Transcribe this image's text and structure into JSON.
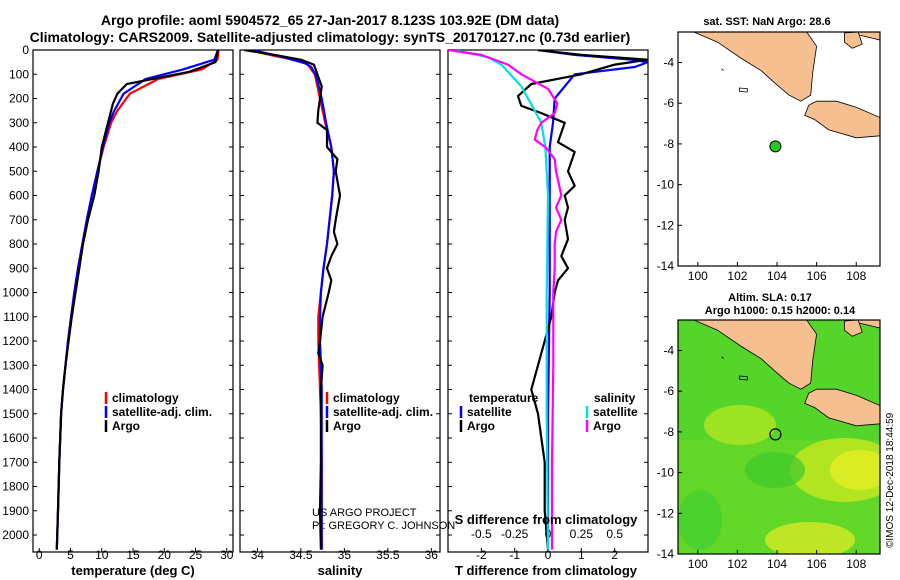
{
  "header": {
    "title_line1": "Argo profile: aoml 5904572_65 27-Jan-2017 8.123S 103.92E (DM data)",
    "title_line2": "Climatology: CARS2009. Satellite-adjusted climatology: synTS_20170127.nc (0.73d earlier)"
  },
  "colors": {
    "climatology": "#ff0000",
    "satellite": "#0000ff",
    "argo": "#000000",
    "salinity_satellite": "#00e0e0",
    "salinity_argo": "#ff00ff",
    "land": "#f5bf8f",
    "float_marker": "#22cc22"
  },
  "credits": {
    "project": "US ARGO PROJECT",
    "pi": "PI: GREGORY C. JOHNSON",
    "imos": "©IMOS 12-Dec-2018 18:44:59"
  },
  "maps": {
    "sst_title": "sat. SST: NaN Argo: 28.6",
    "sla_title_line1": "Altim. SLA: 0.17",
    "sla_title_line2": "Argo h1000: 0.15 h2000: 0.14",
    "lon_ticks": [
      "100",
      "102",
      "104",
      "106",
      "108"
    ],
    "lat_ticks": [
      "-4",
      "-6",
      "-8",
      "-10",
      "-12",
      "-14"
    ],
    "float_lon": 103.92,
    "float_lat": -8.123
  },
  "chart_data": [
    {
      "type": "line",
      "id": "temperature",
      "xlabel": "temperature (deg C)",
      "ylabel": "",
      "xlim": [
        -1,
        31
      ],
      "ylim": [
        2070,
        0
      ],
      "xticks": [
        "0",
        "5",
        "10",
        "15",
        "20",
        "25",
        "30"
      ],
      "yticks": [
        "0",
        "100",
        "200",
        "300",
        "400",
        "500",
        "600",
        "700",
        "800",
        "900",
        "1000",
        "1100",
        "1200",
        "1300",
        "1400",
        "1500",
        "1600",
        "1700",
        "1800",
        "1900",
        "2000"
      ],
      "legend": [
        "climatology",
        "satellite-adj. clim.",
        "Argo"
      ],
      "series": [
        {
          "name": "climatology",
          "color": "#ff0000",
          "x": [
            28.7,
            28.5,
            26.0,
            19.0,
            14.5,
            12.5,
            11.5,
            10.3,
            9.3,
            8.4,
            7.6,
            6.9,
            6.2,
            5.6,
            5.1,
            4.6,
            4.2,
            3.8,
            3.5,
            3.2,
            3.0,
            2.8
          ],
          "y": [
            0,
            40,
            80,
            120,
            180,
            250,
            300,
            400,
            500,
            600,
            700,
            800,
            900,
            1000,
            1100,
            1200,
            1300,
            1400,
            1500,
            1700,
            1900,
            2060
          ]
        },
        {
          "name": "satellite-adj. clim.",
          "color": "#0000ff",
          "x": [
            28.6,
            28.0,
            23.0,
            17.0,
            13.5,
            12.0,
            11.2,
            10.2,
            9.3,
            8.4,
            7.6,
            6.9,
            6.2,
            5.6,
            5.1,
            4.6,
            4.2,
            3.8,
            3.5,
            3.2,
            3.0,
            2.8
          ],
          "y": [
            0,
            40,
            80,
            120,
            180,
            250,
            300,
            400,
            500,
            600,
            700,
            800,
            900,
            1000,
            1100,
            1200,
            1300,
            1400,
            1500,
            1700,
            1900,
            2060
          ]
        },
        {
          "name": "Argo",
          "color": "#000000",
          "x": [
            28.6,
            28.2,
            24.0,
            14.0,
            12.5,
            11.8,
            11.0,
            10.0,
            9.5,
            8.8,
            7.8,
            7.0,
            6.4,
            5.8,
            5.2,
            4.7,
            4.2,
            3.8,
            3.5,
            3.2,
            3.0,
            2.8
          ],
          "y": [
            0,
            50,
            90,
            140,
            180,
            220,
            300,
            400,
            500,
            600,
            700,
            800,
            900,
            1000,
            1100,
            1200,
            1300,
            1400,
            1500,
            1700,
            1900,
            2060
          ]
        }
      ]
    },
    {
      "type": "line",
      "id": "salinity",
      "xlabel": "salinity",
      "xlim": [
        33.8,
        36.1
      ],
      "ylim": [
        2070,
        0
      ],
      "xticks": [
        "34",
        "34.5",
        "35",
        "35.5",
        "36"
      ],
      "legend": [
        "climatology",
        "satellite-adj. clim.",
        "Argo"
      ],
      "series": [
        {
          "name": "climatology",
          "color": "#ff0000",
          "x": [
            33.9,
            34.2,
            34.5,
            34.58,
            34.66,
            34.72,
            34.78,
            34.85,
            34.88,
            34.86,
            34.83,
            34.8,
            34.76,
            34.73,
            34.7,
            34.7,
            34.71,
            34.72,
            34.73,
            34.74,
            34.74,
            34.74
          ],
          "y": [
            0,
            25,
            45,
            60,
            100,
            200,
            300,
            400,
            500,
            600,
            700,
            800,
            900,
            1000,
            1100,
            1200,
            1300,
            1400,
            1500,
            1700,
            1900,
            2060
          ]
        },
        {
          "name": "satellite-adj. clim.",
          "color": "#0000ff",
          "x": [
            33.95,
            34.3,
            34.55,
            34.62,
            34.68,
            34.74,
            34.79,
            34.85,
            34.88,
            34.86,
            34.83,
            34.8,
            34.76,
            34.73,
            34.72,
            34.72,
            34.73,
            34.74,
            34.74,
            34.74,
            34.74,
            34.74
          ],
          "y": [
            0,
            30,
            55,
            70,
            110,
            200,
            300,
            400,
            500,
            600,
            700,
            800,
            900,
            1000,
            1100,
            1200,
            1300,
            1400,
            1500,
            1700,
            1900,
            2060
          ]
        },
        {
          "name": "Argo",
          "color": "#000000",
          "x": [
            33.85,
            34.2,
            34.5,
            34.65,
            34.74,
            34.72,
            34.7,
            34.69,
            34.8,
            34.8,
            34.92,
            34.9,
            34.95,
            34.9,
            34.88,
            34.92,
            34.85,
            34.8,
            34.85,
            34.82,
            34.75,
            34.72,
            34.7,
            34.75,
            34.73,
            34.73,
            34.73,
            34.72,
            34.73
          ],
          "y": [
            0,
            20,
            40,
            60,
            150,
            200,
            250,
            300,
            330,
            400,
            450,
            500,
            600,
            700,
            750,
            800,
            850,
            900,
            950,
            1000,
            1100,
            1200,
            1250,
            1300,
            1400,
            1500,
            1700,
            1900,
            2060
          ]
        }
      ]
    },
    {
      "type": "line",
      "id": "difference",
      "xlabel": "T difference from climatology",
      "x2label": "S difference from climatology",
      "xlim": [
        -3,
        3
      ],
      "x2lim": [
        -0.75,
        0.75
      ],
      "ylim": [
        2070,
        0
      ],
      "xticks": [
        "-2",
        "-1",
        "0",
        "1",
        "2"
      ],
      "x2ticks": [
        "-0.5",
        "-0.25",
        "0",
        "0.25",
        "0.5"
      ],
      "legend_temperature_title": "temperature",
      "legend_salinity_title": "salinity",
      "legend_temperature": [
        "satellite",
        "Argo"
      ],
      "legend_salinity": [
        "satellite",
        "Argo"
      ],
      "series": [
        {
          "name": "temperature satellite",
          "color": "#0000ff",
          "axis": "T",
          "x": [
            -0.3,
            0.8,
            2.5,
            3.0,
            2.6,
            0.8,
            0.2,
            0.15,
            0.05,
            0.05,
            0.05,
            0.0,
            0.0
          ],
          "y": [
            0,
            20,
            40,
            50,
            70,
            100,
            200,
            300,
            400,
            600,
            1000,
            1500,
            2060
          ]
        },
        {
          "name": "temperature Argo",
          "color": "#000000",
          "axis": "T",
          "x": [
            -0.3,
            1.0,
            3.0,
            2.0,
            1.0,
            -0.5,
            -0.9,
            -0.8,
            -0.2,
            0.5,
            0.3,
            0.8,
            0.6,
            0.8,
            0.5,
            0.6,
            0.5,
            0.6,
            0.4,
            0.6,
            0.3,
            0.2,
            0.1,
            -0.1,
            -0.3,
            -0.5,
            -0.3,
            -0.1,
            -0.1,
            0.0
          ],
          "y": [
            0,
            20,
            40,
            60,
            100,
            140,
            190,
            230,
            260,
            300,
            380,
            420,
            500,
            560,
            600,
            650,
            700,
            780,
            850,
            900,
            950,
            1000,
            1100,
            1200,
            1300,
            1400,
            1500,
            1700,
            1900,
            2060
          ]
        },
        {
          "name": "salinity satellite",
          "color": "#00e0e0",
          "axis": "S",
          "x": [
            -0.7,
            -0.45,
            -0.35,
            -0.3,
            -0.25,
            -0.2,
            -0.15,
            -0.1,
            -0.05,
            -0.02,
            0.0,
            -0.01,
            -0.01,
            0.0
          ],
          "y": [
            0,
            30,
            60,
            90,
            120,
            150,
            200,
            250,
            300,
            400,
            600,
            1000,
            1500,
            2060
          ]
        },
        {
          "name": "salinity Argo",
          "color": "#ff00ff",
          "axis": "S",
          "x": [
            -0.75,
            -0.5,
            -0.3,
            -0.2,
            0.0,
            0.07,
            0.05,
            -0.05,
            -0.08,
            -0.1,
            -0.02,
            0.05,
            0.06,
            0.08,
            0.1,
            0.06,
            0.1,
            0.06,
            0.05,
            0.05,
            0.04,
            0.04,
            0.03,
            0.03
          ],
          "y": [
            0,
            20,
            60,
            100,
            160,
            220,
            260,
            300,
            330,
            370,
            400,
            450,
            500,
            550,
            600,
            650,
            700,
            750,
            800,
            900,
            1000,
            1300,
            1700,
            2060
          ]
        }
      ]
    }
  ]
}
